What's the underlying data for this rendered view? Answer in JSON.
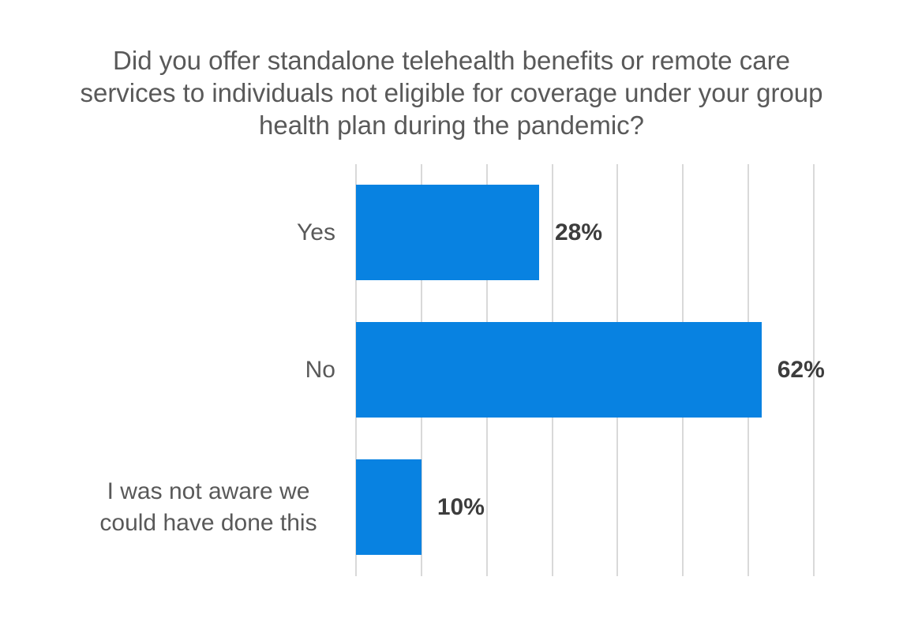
{
  "chart_data": {
    "type": "bar",
    "orientation": "horizontal",
    "title": "Did you offer standalone telehealth benefits or remote care services to individuals not eligible for coverage under your group health plan during the pandemic?",
    "categories": [
      "Yes",
      "No",
      "I was not aware we could have done this"
    ],
    "values": [
      28,
      62,
      10
    ],
    "value_labels": [
      "28%",
      "62%",
      "10%"
    ],
    "xlabel": "",
    "ylabel": "",
    "xlim": [
      0,
      70
    ],
    "gridline_step": 10,
    "grid": true,
    "legend_visible": false,
    "axis_tick_labels_visible": false,
    "colors": {
      "bar": "#0882E1",
      "title_text": "#595959",
      "category_text": "#595959",
      "value_text": "#3D3D3D",
      "gridline": "#D9D9D9",
      "background": "#FFFFFF"
    }
  }
}
